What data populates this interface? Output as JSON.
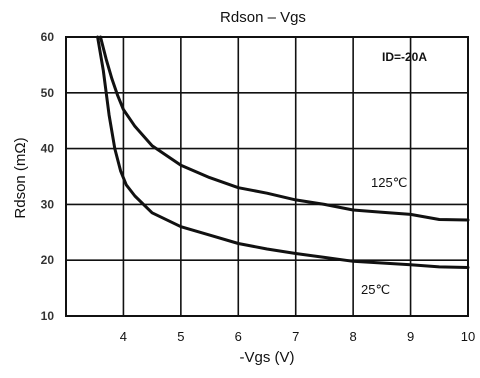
{
  "chart_data": {
    "type": "line",
    "title": "Rdson – Vgs",
    "xlabel": "-Vgs  (V)",
    "ylabel": "Rdson (mΩ)",
    "xlim": [
      3,
      10
    ],
    "ylim": [
      10,
      60
    ],
    "x_ticks": [
      4,
      5,
      6,
      7,
      8,
      9,
      10
    ],
    "y_ticks": [
      10,
      20,
      30,
      40,
      50,
      60
    ],
    "grid": true,
    "annotation": "ID=-20A",
    "series": [
      {
        "name": "125℃",
        "x": [
          3.6,
          3.7,
          3.8,
          3.9,
          4.0,
          4.2,
          4.5,
          5.0,
          5.5,
          6.0,
          6.5,
          7.0,
          7.5,
          8.0,
          8.5,
          9.0,
          9.5,
          10.0
        ],
        "y": [
          60,
          56,
          52.5,
          49.5,
          47,
          44,
          40.5,
          37,
          34.8,
          33,
          32,
          30.8,
          30,
          29,
          28.6,
          28.2,
          27.3,
          27.2
        ]
      },
      {
        "name": "25℃",
        "x": [
          3.55,
          3.65,
          3.75,
          3.85,
          3.95,
          4.05,
          4.2,
          4.5,
          5.0,
          5.5,
          6.0,
          6.5,
          7.0,
          7.5,
          8.0,
          8.5,
          9.0,
          9.5,
          10.0
        ],
        "y": [
          60,
          54,
          46,
          40,
          36,
          33.5,
          31.5,
          28.5,
          26,
          24.5,
          23,
          22,
          21.2,
          20.5,
          19.8,
          19.5,
          19.2,
          18.8,
          18.7
        ]
      }
    ]
  }
}
